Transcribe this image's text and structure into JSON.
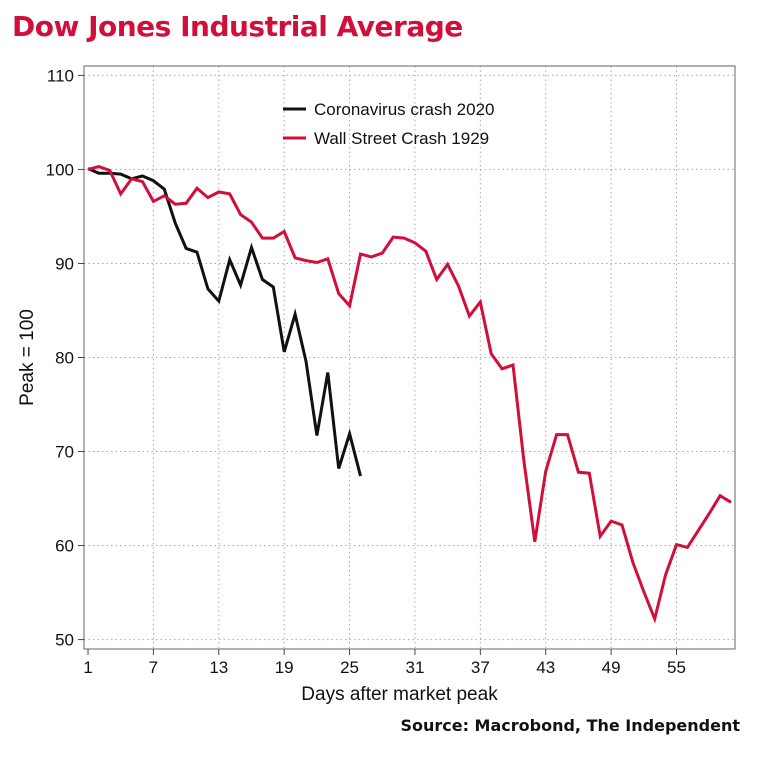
{
  "header": {
    "title": "Dow Jones Industrial Average"
  },
  "footer": {
    "source": "Source: Macrobond, The Independent"
  },
  "colors": {
    "title": "#d0103a",
    "coronavirus": "#111111",
    "wall_street": "#d0103a",
    "grid": "#aaaaaa"
  },
  "chart_data": {
    "type": "line",
    "title": "Dow Jones Industrial Average",
    "xlabel": "Days after market peak",
    "ylabel": "Peak = 100",
    "xlim": [
      1,
      60
    ],
    "ylim": [
      49,
      111
    ],
    "x_ticks": [
      1,
      7,
      13,
      19,
      25,
      31,
      37,
      43,
      49,
      55
    ],
    "x_tick_labels": [
      "1",
      "7",
      "13",
      "19",
      "25",
      "31",
      "37",
      "43",
      "49",
      "55"
    ],
    "y_ticks": [
      50,
      60,
      70,
      80,
      90,
      100,
      110
    ],
    "y_tick_labels": [
      "50",
      "60",
      "70",
      "80",
      "90",
      "100",
      "110"
    ],
    "grid": "dotted",
    "legend_position": "top-center",
    "series": [
      {
        "name": "Coronavirus crash 2020",
        "color": "#111111",
        "x": [
          1,
          2,
          3,
          4,
          5,
          6,
          7,
          8,
          9,
          10,
          11,
          12,
          13,
          14,
          15,
          16,
          17,
          18,
          19,
          20,
          21,
          22,
          23,
          24,
          25,
          26
        ],
        "y": [
          100.1,
          99.6,
          99.6,
          99.5,
          99.0,
          99.3,
          98.8,
          97.9,
          94.3,
          91.6,
          91.2,
          87.3,
          86.0,
          90.4,
          87.7,
          91.7,
          88.3,
          87.5,
          80.6,
          84.6,
          79.6,
          71.7,
          78.4,
          68.2,
          71.9,
          67.4
        ]
      },
      {
        "name": "Wall Street Crash 1929",
        "color": "#d0103a",
        "x": [
          1,
          2,
          3,
          4,
          5,
          6,
          7,
          8,
          9,
          10,
          11,
          12,
          13,
          14,
          15,
          16,
          17,
          18,
          19,
          20,
          21,
          22,
          23,
          24,
          25,
          26,
          27,
          28,
          29,
          30,
          31,
          32,
          33,
          34,
          35,
          36,
          37,
          38,
          39,
          40,
          41,
          42,
          43,
          44,
          45,
          46,
          47,
          48,
          49,
          50,
          51,
          52,
          53,
          54,
          55,
          56,
          57,
          58,
          59,
          60
        ],
        "y": [
          100.0,
          100.3,
          99.9,
          97.4,
          99.0,
          98.7,
          96.6,
          97.2,
          96.3,
          96.4,
          98.0,
          97.0,
          97.6,
          97.4,
          95.2,
          94.4,
          92.7,
          92.7,
          93.4,
          90.6,
          90.3,
          90.1,
          90.5,
          86.8,
          85.5,
          91.0,
          90.7,
          91.1,
          92.8,
          92.7,
          92.2,
          91.3,
          88.3,
          89.9,
          87.6,
          84.4,
          85.9,
          80.4,
          78.8,
          79.2,
          69.0,
          60.4,
          67.9,
          71.8,
          71.8,
          67.8,
          67.7,
          61.0,
          62.6,
          62.2,
          58.2,
          55.1,
          52.2,
          56.9,
          60.1,
          59.8,
          61.6,
          63.4,
          65.3,
          64.6
        ]
      }
    ]
  }
}
